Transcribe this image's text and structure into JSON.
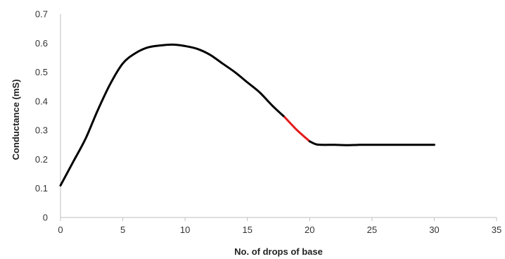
{
  "chart_data": {
    "type": "line",
    "xlabel": "No. of drops of base",
    "ylabel": "Conductance (mS)",
    "xlim": [
      0,
      35
    ],
    "ylim": [
      0,
      0.7
    ],
    "x_ticks": [
      "0",
      "5",
      "10",
      "15",
      "20",
      "25",
      "30",
      "35"
    ],
    "y_ticks": [
      "0",
      "0.1",
      "0.2",
      "0.3",
      "0.4",
      "0.5",
      "0.6",
      "0.7"
    ],
    "grid": false,
    "legend": "none",
    "series": [
      {
        "color": "#000000",
        "x": [
          0,
          1,
          2,
          3,
          4,
          5,
          6,
          7,
          8,
          9,
          10,
          11,
          12,
          13,
          14,
          15,
          16,
          17,
          18
        ],
        "y": [
          0.11,
          0.19,
          0.27,
          0.37,
          0.46,
          0.53,
          0.565,
          0.585,
          0.592,
          0.595,
          0.59,
          0.58,
          0.56,
          0.53,
          0.5,
          0.465,
          0.43,
          0.385,
          0.345
        ]
      },
      {
        "color": "#e41a1c",
        "x": [
          18,
          19,
          20
        ],
        "y": [
          0.345,
          0.3,
          0.262
        ]
      },
      {
        "color": "#000000",
        "x": [
          20,
          20.5,
          21,
          22,
          23,
          24,
          25,
          26,
          27,
          28,
          29,
          30
        ],
        "y": [
          0.262,
          0.252,
          0.25,
          0.25,
          0.249,
          0.25,
          0.25,
          0.25,
          0.25,
          0.25,
          0.25,
          0.25
        ]
      }
    ]
  }
}
